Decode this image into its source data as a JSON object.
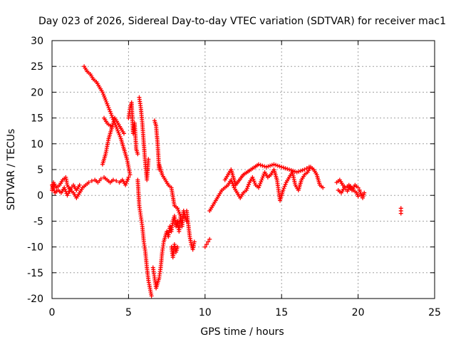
{
  "chart_data": {
    "type": "scatter",
    "title": "Day 023 of 2026, Sidereal Day-to-day VTEC variation (SDTVAR) for receiver mac1",
    "xlabel": "GPS time / hours",
    "ylabel": "SDTVAR / TECUs",
    "xlim": [
      0,
      25
    ],
    "ylim": [
      -20,
      30
    ],
    "xticks": [
      "0",
      "5",
      "10",
      "15",
      "20",
      "25"
    ],
    "yticks": [
      "-20",
      "-15",
      "-10",
      "-5",
      "0",
      "5",
      "10",
      "15",
      "20",
      "25",
      "30"
    ],
    "grid": true,
    "marker": "plus",
    "color": "#ff0000",
    "segments": [
      [
        [
          0.0,
          1.0
        ],
        [
          0.1,
          2.5
        ],
        [
          0.3,
          1.5
        ],
        [
          0.5,
          2.0
        ],
        [
          0.7,
          3.0
        ],
        [
          0.9,
          3.5
        ],
        [
          1.0,
          2.0
        ],
        [
          1.2,
          1.0
        ],
        [
          1.4,
          0.5
        ],
        [
          1.6,
          -0.5
        ],
        [
          1.8,
          0.5
        ],
        [
          2.0,
          1.5
        ],
        [
          2.2,
          2.0
        ],
        [
          2.4,
          2.5
        ],
        [
          2.6,
          2.8
        ],
        [
          2.8,
          3.0
        ],
        [
          3.0,
          2.5
        ],
        [
          3.2,
          3.2
        ],
        [
          3.4,
          3.5
        ],
        [
          3.6,
          3.0
        ],
        [
          3.8,
          2.5
        ],
        [
          4.0,
          3.0
        ],
        [
          4.2,
          2.8
        ],
        [
          4.4,
          2.5
        ],
        [
          4.6,
          3.0
        ],
        [
          4.8,
          2.0
        ],
        [
          5.0,
          3.5
        ]
      ],
      [
        [
          0.0,
          2.0
        ],
        [
          0.2,
          0.5
        ],
        [
          0.4,
          1.0
        ],
        [
          0.6,
          0.5
        ],
        [
          0.8,
          1.5
        ],
        [
          1.0,
          0.0
        ],
        [
          1.2,
          1.2
        ],
        [
          1.4,
          2.0
        ],
        [
          1.6,
          1.0
        ],
        [
          1.8,
          2.0
        ]
      ],
      [
        [
          2.1,
          25.0
        ],
        [
          2.3,
          24.0
        ],
        [
          2.5,
          23.5
        ],
        [
          2.7,
          22.5
        ],
        [
          2.9,
          22.0
        ],
        [
          3.1,
          21.0
        ],
        [
          3.3,
          20.0
        ],
        [
          3.5,
          18.5
        ],
        [
          3.7,
          17.0
        ],
        [
          3.9,
          15.5
        ],
        [
          4.1,
          14.0
        ],
        [
          4.3,
          12.5
        ],
        [
          4.5,
          11.0
        ],
        [
          4.7,
          9.0
        ],
        [
          4.9,
          7.0
        ],
        [
          5.0,
          5.5
        ],
        [
          5.1,
          4.0
        ]
      ],
      [
        [
          3.3,
          6.0
        ],
        [
          3.5,
          8.0
        ],
        [
          3.7,
          11.0
        ],
        [
          3.9,
          13.0
        ],
        [
          4.1,
          15.0
        ],
        [
          4.3,
          14.0
        ],
        [
          4.5,
          13.0
        ],
        [
          4.7,
          12.0
        ]
      ],
      [
        [
          3.4,
          15.0
        ],
        [
          3.6,
          14.0
        ],
        [
          3.8,
          13.5
        ]
      ],
      [
        [
          5.0,
          15.0
        ],
        [
          5.1,
          17.0
        ],
        [
          5.2,
          18.0
        ],
        [
          5.3,
          12.0
        ],
        [
          5.4,
          14.0
        ],
        [
          5.5,
          9.0
        ],
        [
          5.6,
          8.0
        ]
      ],
      [
        [
          5.6,
          3.0
        ],
        [
          5.7,
          -2.0
        ],
        [
          5.8,
          -4.0
        ],
        [
          5.9,
          -6.0
        ],
        [
          6.0,
          -9.0
        ],
        [
          6.1,
          -11.0
        ],
        [
          6.2,
          -14.0
        ],
        [
          6.3,
          -16.5
        ],
        [
          6.4,
          -18.0
        ],
        [
          6.5,
          -19.5
        ]
      ],
      [
        [
          5.7,
          19.0
        ],
        [
          5.8,
          17.0
        ],
        [
          5.9,
          14.0
        ],
        [
          6.0,
          10.0
        ],
        [
          6.1,
          6.0
        ],
        [
          6.2,
          3.0
        ],
        [
          6.3,
          7.0
        ]
      ],
      [
        [
          6.7,
          14.5
        ],
        [
          6.8,
          13.5
        ],
        [
          6.9,
          10.0
        ],
        [
          7.0,
          5.0
        ]
      ],
      [
        [
          6.6,
          -14.0
        ],
        [
          6.7,
          -16.0
        ],
        [
          6.8,
          -18.0
        ],
        [
          6.9,
          -17.0
        ],
        [
          7.0,
          -16.0
        ],
        [
          7.1,
          -14.0
        ],
        [
          7.2,
          -11.0
        ],
        [
          7.3,
          -9.0
        ],
        [
          7.4,
          -8.0
        ],
        [
          7.5,
          -7.0
        ],
        [
          7.6,
          -8.0
        ],
        [
          7.7,
          -6.0
        ],
        [
          7.8,
          -7.0
        ],
        [
          7.9,
          -5.0
        ],
        [
          8.0,
          -4.0
        ],
        [
          8.1,
          -6.0
        ],
        [
          8.2,
          -5.0
        ],
        [
          8.3,
          -7.0
        ],
        [
          8.4,
          -4.0
        ],
        [
          8.5,
          -6.0
        ],
        [
          8.6,
          -3.0
        ],
        [
          8.8,
          -5.0
        ]
      ],
      [
        [
          7.0,
          6.0
        ],
        [
          7.2,
          4.0
        ],
        [
          7.4,
          3.0
        ],
        [
          7.6,
          2.0
        ],
        [
          7.8,
          1.5
        ],
        [
          8.0,
          -2.0
        ],
        [
          8.2,
          -2.5
        ],
        [
          8.4,
          -4.0
        ]
      ],
      [
        [
          7.8,
          -10.0
        ],
        [
          7.9,
          -12.0
        ],
        [
          8.0,
          -9.5
        ],
        [
          8.1,
          -11.0
        ],
        [
          8.2,
          -10.0
        ]
      ],
      [
        [
          8.8,
          -3.0
        ],
        [
          9.0,
          -8.0
        ],
        [
          9.1,
          -9.5
        ],
        [
          9.2,
          -10.5
        ],
        [
          9.3,
          -9.0
        ]
      ],
      [
        [
          10.0,
          -10.0
        ],
        [
          10.1,
          -9.5
        ],
        [
          10.2,
          -9.0
        ],
        [
          10.3,
          -8.5
        ]
      ],
      [
        [
          10.3,
          -3.0
        ],
        [
          10.5,
          -2.0
        ],
        [
          10.7,
          -1.0
        ],
        [
          10.9,
          0.0
        ],
        [
          11.1,
          1.0
        ],
        [
          11.3,
          1.5
        ],
        [
          11.5,
          2.0
        ],
        [
          11.7,
          3.0
        ],
        [
          11.9,
          1.5
        ],
        [
          12.1,
          0.5
        ],
        [
          12.3,
          -0.5
        ],
        [
          12.5,
          0.5
        ],
        [
          12.7,
          1.0
        ],
        [
          12.9,
          2.5
        ],
        [
          13.1,
          3.5
        ],
        [
          13.3,
          2.0
        ],
        [
          13.5,
          1.5
        ],
        [
          13.7,
          3.0
        ],
        [
          13.9,
          4.5
        ],
        [
          14.1,
          3.5
        ],
        [
          14.3,
          4.0
        ],
        [
          14.5,
          5.0
        ],
        [
          14.7,
          3.0
        ],
        [
          14.9,
          -1.0
        ],
        [
          15.1,
          1.0
        ],
        [
          15.3,
          2.5
        ],
        [
          15.5,
          3.5
        ],
        [
          15.7,
          4.5
        ],
        [
          15.9,
          2.0
        ],
        [
          16.1,
          1.0
        ],
        [
          16.3,
          3.0
        ],
        [
          16.5,
          4.0
        ],
        [
          16.7,
          4.5
        ],
        [
          16.9,
          5.5
        ],
        [
          17.1,
          5.0
        ],
        [
          17.3,
          4.0
        ],
        [
          17.5,
          2.0
        ],
        [
          17.7,
          1.5
        ]
      ],
      [
        [
          11.3,
          3.0
        ],
        [
          11.5,
          4.0
        ],
        [
          11.7,
          5.0
        ],
        [
          12.0,
          2.0
        ],
        [
          12.5,
          4.0
        ],
        [
          13.0,
          5.0
        ],
        [
          13.5,
          6.0
        ],
        [
          14.0,
          5.5
        ],
        [
          14.5,
          6.0
        ],
        [
          15.0,
          5.5
        ],
        [
          15.5,
          5.0
        ],
        [
          16.0,
          4.5
        ],
        [
          16.5,
          5.0
        ],
        [
          16.8,
          5.5
        ],
        [
          17.0,
          5.2
        ]
      ],
      [
        [
          18.6,
          2.5
        ],
        [
          18.8,
          3.0
        ],
        [
          19.0,
          2.0
        ],
        [
          19.2,
          1.5
        ],
        [
          19.4,
          2.0
        ],
        [
          19.6,
          1.0
        ],
        [
          19.8,
          2.0
        ],
        [
          20.0,
          1.5
        ],
        [
          20.1,
          1.0
        ],
        [
          20.2,
          0.0
        ],
        [
          20.3,
          -0.5
        ],
        [
          20.4,
          0.5
        ]
      ],
      [
        [
          18.7,
          1.0
        ],
        [
          18.9,
          0.5
        ],
        [
          19.1,
          1.5
        ],
        [
          19.3,
          0.8
        ],
        [
          19.5,
          1.8
        ],
        [
          19.7,
          1.0
        ],
        [
          19.9,
          0.5
        ],
        [
          20.0,
          -0.2
        ]
      ],
      [
        [
          22.8,
          -2.5
        ],
        [
          22.8,
          -3.0
        ],
        [
          22.8,
          -3.5
        ]
      ]
    ]
  }
}
